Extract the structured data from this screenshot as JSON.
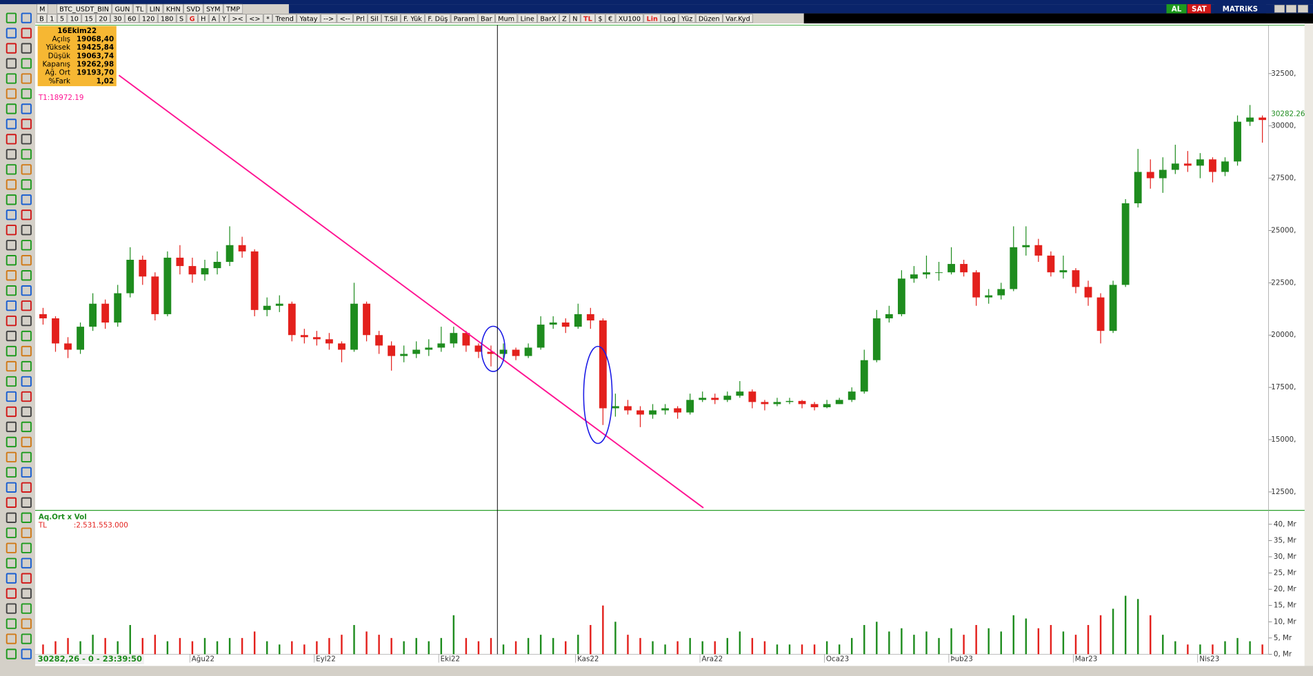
{
  "toolbar": {
    "row1": [
      "M",
      "BTC_USDT_BIN",
      "GUN",
      "TL",
      "LIN",
      "KHN",
      "SVD",
      "SYM",
      "TMP"
    ],
    "row2": [
      "B",
      "1",
      "5",
      "10",
      "15",
      "20",
      "30",
      "60",
      "120",
      "180",
      "S",
      "G",
      "H",
      "A",
      "Y",
      "><",
      "<>",
      "*",
      "Trend",
      "Yatay",
      "-->",
      "<--",
      "Prl",
      "Sil",
      "T.Sil",
      "F. Yük",
      "F. Düş",
      "Param",
      "Bar",
      "Mum",
      "Line",
      "BarX",
      "Z",
      "N",
      "TL",
      "$",
      "€",
      "XU100",
      "Lin",
      "Log",
      "Yüz",
      "Düzen",
      "Var.Kyd"
    ],
    "right": [
      "AL",
      "SAT",
      "MATRiKS"
    ]
  },
  "info_box": {
    "title": "16Ekim22",
    "rows": [
      [
        "Açılış",
        "19068,40"
      ],
      [
        "Yüksek",
        "19425,84"
      ],
      [
        "Düşük",
        "19063,74"
      ],
      [
        "Kapanış",
        "19262,98"
      ],
      [
        "Ağ. Ort",
        "19193,70"
      ],
      [
        "%Fark",
        "1,02"
      ]
    ]
  },
  "annotation": "T1:18972.19",
  "status": "30282,26 - 0 - 23:39:50",
  "chart_data": [
    {
      "type": "candlestick",
      "up_color": "#1e8c1e",
      "down_color": "#e3201c",
      "categories": [
        null,
        null,
        null,
        null,
        null,
        null,
        null,
        null,
        null,
        null,
        null,
        null,
        "Ağu22",
        null,
        null,
        null,
        null,
        null,
        null,
        null,
        null,
        null,
        "Eyl22",
        null,
        null,
        null,
        null,
        null,
        null,
        null,
        null,
        null,
        "Eki22",
        null,
        null,
        null,
        null,
        null,
        null,
        null,
        null,
        null,
        null,
        "Kas22",
        null,
        null,
        null,
        null,
        null,
        null,
        null,
        null,
        null,
        "Ara22",
        null,
        null,
        null,
        null,
        null,
        null,
        null,
        null,
        null,
        "Oca23",
        null,
        null,
        null,
        null,
        null,
        null,
        null,
        null,
        null,
        "Þub23",
        null,
        null,
        null,
        null,
        null,
        null,
        null,
        null,
        null,
        "Mar23",
        null,
        null,
        null,
        null,
        null,
        null,
        null,
        null,
        null,
        "Nis23",
        null,
        null,
        null,
        null,
        null
      ],
      "open": [
        21000,
        20800,
        19600,
        19300,
        20400,
        21500,
        20600,
        22000,
        23600,
        22800,
        21000,
        23700,
        23300,
        22900,
        23200,
        23500,
        24300,
        24000,
        21200,
        21400,
        21500,
        20000,
        19900,
        19800,
        19600,
        19300,
        21500,
        20000,
        19500,
        19000,
        19100,
        19300,
        19400,
        19600,
        20100,
        19500,
        19200,
        19100,
        19300,
        19000,
        19400,
        20500,
        20600,
        20400,
        21000,
        20700,
        16500,
        16600,
        16400,
        16200,
        16400,
        16500,
        16300,
        16900,
        17000,
        16900,
        17100,
        17300,
        16800,
        16700,
        16800,
        16850,
        16700,
        16550,
        16700,
        16900,
        17300,
        18800,
        20800,
        21000,
        22700,
        22900,
        23000,
        23000,
        23400,
        23000,
        21800,
        21900,
        22200,
        24200,
        24300,
        23800,
        23000,
        23100,
        22300,
        21800,
        20200,
        22400,
        26300,
        27800,
        27500,
        27900,
        28200,
        28100,
        28400,
        27800,
        28300,
        30200,
        30400
      ],
      "high": [
        21300,
        20900,
        19900,
        20600,
        22000,
        21700,
        22400,
        24200,
        23800,
        23000,
        24000,
        24300,
        23700,
        23600,
        24000,
        25200,
        24700,
        24100,
        21800,
        21900,
        21600,
        20300,
        20200,
        20100,
        19700,
        22500,
        21600,
        20200,
        19700,
        19500,
        19700,
        19800,
        20400,
        20400,
        20200,
        19600,
        19500,
        19600,
        19400,
        19600,
        20900,
        20900,
        20800,
        21500,
        21300,
        20800,
        17200,
        16900,
        16600,
        16700,
        16700,
        16600,
        17200,
        17300,
        17200,
        17300,
        17800,
        17400,
        16900,
        17000,
        17000,
        16900,
        16800,
        16900,
        17000,
        17500,
        19300,
        21200,
        21400,
        23100,
        23300,
        23800,
        23500,
        24200,
        23600,
        23100,
        22200,
        22500,
        25200,
        25200,
        24600,
        24000,
        23800,
        23200,
        22600,
        22000,
        22600,
        26500,
        28900,
        28400,
        28500,
        29100,
        28800,
        28700,
        28500,
        28500,
        30500,
        31000,
        30500
      ],
      "low": [
        20500,
        19200,
        18900,
        19100,
        20200,
        20300,
        20400,
        21800,
        22400,
        20700,
        20900,
        22900,
        22500,
        22600,
        22900,
        23300,
        23700,
        20900,
        20900,
        21100,
        19700,
        19600,
        19500,
        19300,
        18700,
        19200,
        19700,
        19100,
        18300,
        18700,
        18900,
        19000,
        19200,
        19400,
        19200,
        18900,
        18500,
        18800,
        18800,
        18900,
        19300,
        20300,
        20100,
        20300,
        20300,
        15700,
        16100,
        16200,
        15600,
        16000,
        16200,
        16000,
        16200,
        16800,
        16700,
        16800,
        17000,
        16500,
        16400,
        16600,
        16700,
        16500,
        16400,
        16500,
        16700,
        16800,
        17200,
        18700,
        20600,
        20900,
        22500,
        22700,
        22600,
        22900,
        22800,
        21400,
        21500,
        21700,
        22100,
        23800,
        23500,
        22800,
        22700,
        22000,
        21400,
        19600,
        20100,
        22300,
        26100,
        27000,
        26800,
        27700,
        27800,
        27500,
        27300,
        27600,
        28100,
        30000,
        29200
      ],
      "close": [
        20800,
        19600,
        19300,
        20400,
        21500,
        20600,
        22000,
        23600,
        22800,
        21000,
        23700,
        23300,
        22900,
        23200,
        23500,
        24300,
        24000,
        21200,
        21400,
        21500,
        20000,
        19900,
        19800,
        19600,
        19300,
        21500,
        20000,
        19500,
        19000,
        19100,
        19300,
        19400,
        19600,
        20100,
        19500,
        19200,
        19100,
        19300,
        19000,
        19400,
        20500,
        20600,
        20400,
        21000,
        20700,
        16500,
        16600,
        16400,
        16200,
        16400,
        16500,
        16300,
        16900,
        17000,
        16900,
        17100,
        17300,
        16800,
        16700,
        16800,
        16850,
        16700,
        16550,
        16700,
        16900,
        17300,
        18800,
        20800,
        21000,
        22700,
        22900,
        23000,
        23000,
        23400,
        23000,
        21800,
        21900,
        22200,
        24200,
        24300,
        23800,
        23000,
        23100,
        22300,
        21800,
        20200,
        22400,
        26300,
        27800,
        27500,
        27900,
        28200,
        28100,
        28400,
        27800,
        28300,
        30200,
        30400,
        30282.26
      ],
      "ylim": [
        11700,
        34820
      ],
      "yticks": [
        {
          "value": 12500,
          "label": "12500,"
        },
        {
          "value": 15000,
          "label": "15000,"
        },
        {
          "value": 17500,
          "label": "17500,"
        },
        {
          "value": 20000,
          "label": "20000,"
        },
        {
          "value": 22500,
          "label": "22500,"
        },
        {
          "value": 25000,
          "label": "25000,"
        },
        {
          "value": 27500,
          "label": "27500,"
        },
        {
          "value": 30000,
          "label": "30000,"
        },
        {
          "value": 32500,
          "label": "32500,"
        }
      ]
    },
    {
      "type": "bar",
      "title": "Aq.Ort x Vol",
      "legend_label": "TL",
      "legend_value": ":2.531.553.000",
      "up_color": "#1e8c1e",
      "down_color": "#e3201c",
      "values": [
        3,
        4,
        5,
        4,
        6,
        5,
        4,
        9,
        5,
        6,
        4,
        5,
        4,
        5,
        4,
        5,
        5,
        7,
        4,
        3,
        4,
        3,
        4,
        5,
        6,
        9,
        7,
        6,
        5,
        4,
        5,
        4,
        5,
        12,
        5,
        4,
        5,
        3,
        4,
        5,
        6,
        5,
        4,
        6,
        9,
        15,
        10,
        6,
        5,
        4,
        3,
        4,
        5,
        4,
        4,
        5,
        7,
        5,
        4,
        3,
        3,
        3,
        3,
        4,
        3,
        5,
        9,
        10,
        7,
        8,
        6,
        7,
        5,
        8,
        6,
        9,
        8,
        7,
        12,
        11,
        8,
        9,
        7,
        6,
        9,
        12,
        14,
        18,
        17,
        12,
        6,
        4,
        3,
        3,
        3,
        4,
        5,
        4,
        3
      ],
      "ylim": [
        0,
        43
      ],
      "yticks": [
        {
          "value": 0,
          "label": "0, Mr"
        },
        {
          "value": 5,
          "label": "5, Mr"
        },
        {
          "value": 10,
          "label": "10, Mr"
        },
        {
          "value": 15,
          "label": "15, Mr"
        },
        {
          "value": 20,
          "label": "20, Mr"
        },
        {
          "value": 25,
          "label": "25, Mr"
        },
        {
          "value": 30,
          "label": "30, Mr"
        },
        {
          "value": 35,
          "label": "35, Mr"
        },
        {
          "value": 40,
          "label": "40, Mr"
        }
      ]
    }
  ]
}
